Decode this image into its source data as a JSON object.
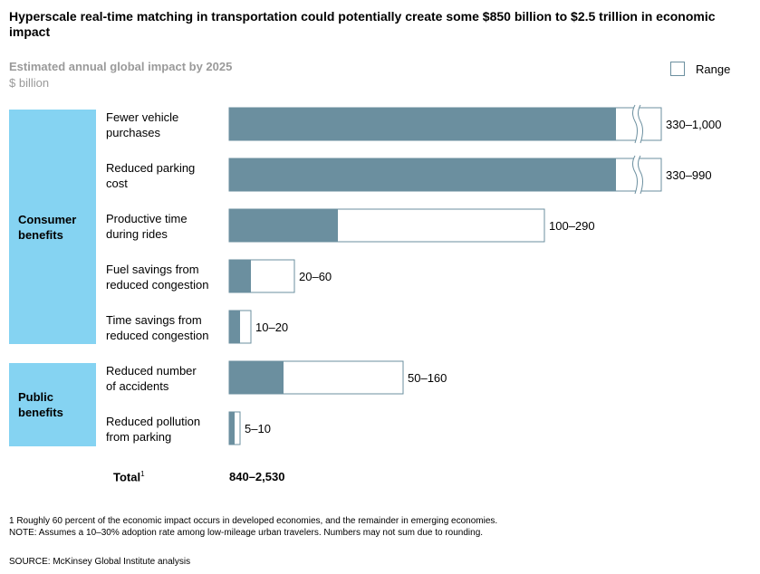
{
  "title": "Hyperscale real-time matching in transportation could potentially create some $850 billion to $2.5 trillion in economic impact",
  "chart_data": {
    "type": "bar",
    "title": "Estimated annual global impact by 2025",
    "unit": "$ billion",
    "legend": "Range",
    "categories": [
      "Fewer vehicle purchases",
      "Reduced parking cost",
      "Productive time during rides",
      "Fuel savings from reduced congestion",
      "Time savings from reduced congestion",
      "Reduced number of accidents",
      "Reduced pollution from parking"
    ],
    "groups": [
      {
        "name": "Consumer benefits",
        "categories": [
          0,
          1,
          2,
          3,
          4
        ]
      },
      {
        "name": "Public benefits",
        "categories": [
          5,
          6
        ]
      }
    ],
    "low": [
      330,
      330,
      100,
      20,
      10,
      50,
      5
    ],
    "high": [
      1000,
      990,
      290,
      60,
      20,
      160,
      10
    ],
    "labels": [
      "330–1,000",
      "330–990",
      "100–290",
      "20–60",
      "10–20",
      "50–160",
      "5–10"
    ],
    "axis_break": [
      0,
      1
    ],
    "total_label": "Total",
    "total_sup": "1",
    "total_value": "840–2,530",
    "colors": {
      "low": "#6b8f9f",
      "range": "#ffffff",
      "border": "#6b8f9f",
      "group": "#85d3f2"
    }
  },
  "cat_lines": [
    [
      "Fewer vehicle",
      "purchases"
    ],
    [
      "Reduced parking",
      "cost"
    ],
    [
      "Productive time",
      "during rides"
    ],
    [
      "Fuel savings from",
      "reduced congestion"
    ],
    [
      "Time savings from",
      "reduced congestion"
    ],
    [
      "Reduced number",
      "of accidents"
    ],
    [
      "Reduced pollution",
      "from parking"
    ]
  ],
  "group_lines": [
    [
      "Consumer",
      "benefits"
    ],
    [
      "Public",
      "benefits"
    ]
  ],
  "footnote1": "1  Roughly 60 percent of the economic impact occurs in developed economies, and the remainder in emerging economies.",
  "note": "NOTE: Assumes a 10–30% adoption rate among low-mileage urban travelers. Numbers may not sum due to rounding.",
  "source": "SOURCE:  McKinsey Global Institute analysis"
}
